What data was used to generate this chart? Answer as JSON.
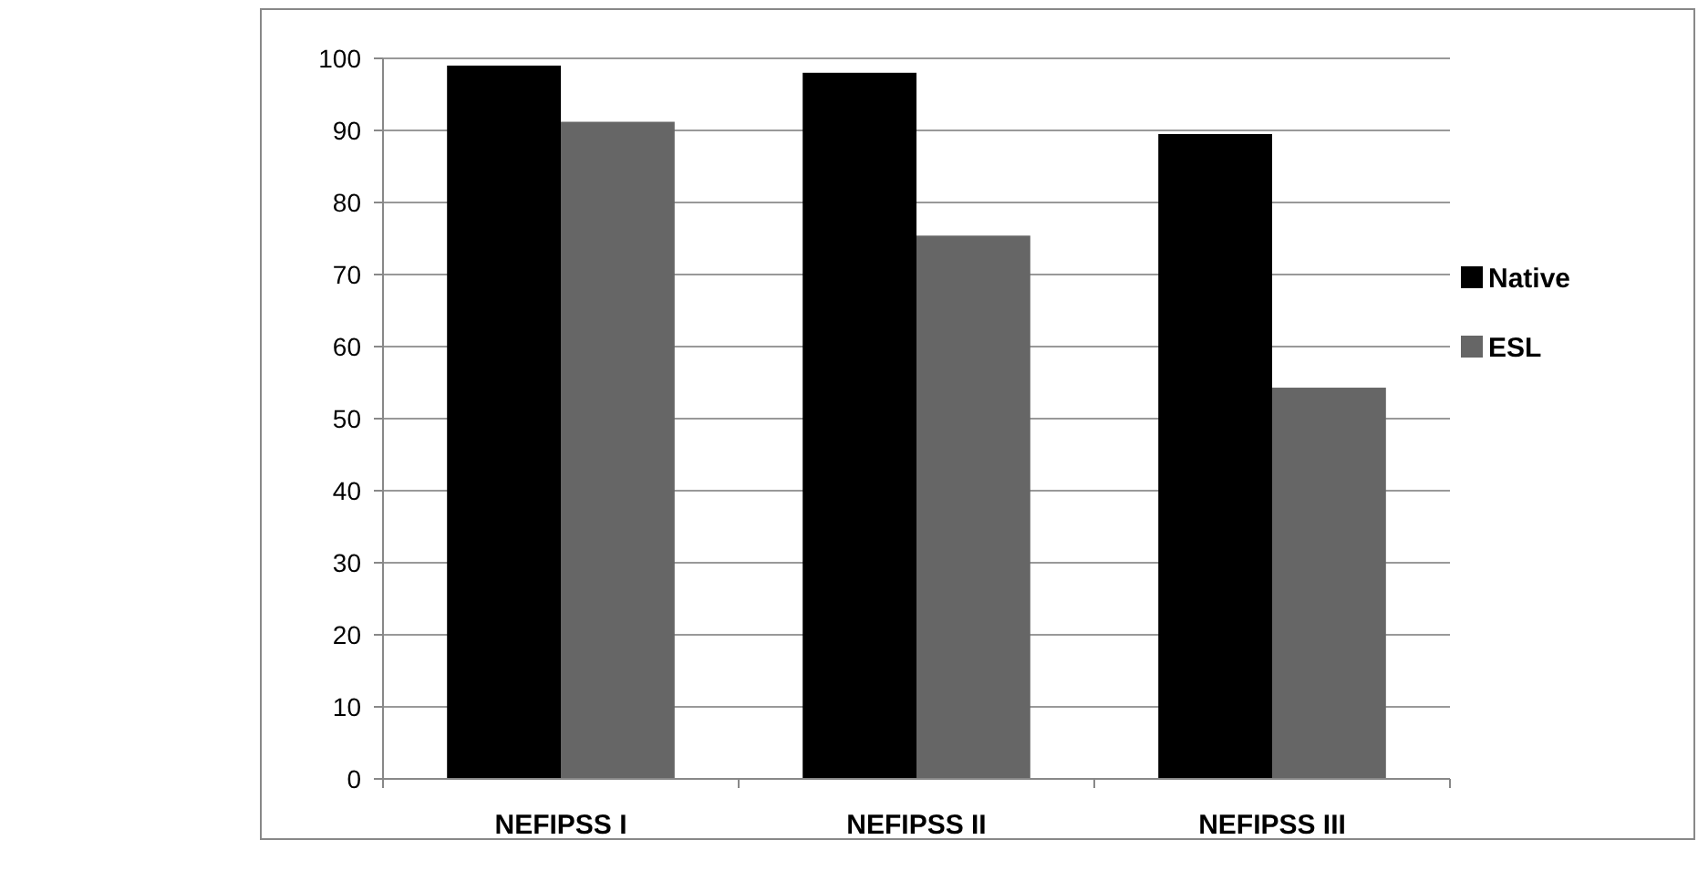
{
  "chart_data": {
    "type": "bar",
    "categories": [
      "NEFIPSS I",
      "NEFIPSS II",
      "NEFIPSS III"
    ],
    "series": [
      {
        "name": "Native",
        "color": "#000000",
        "values": [
          99,
          98,
          89.5
        ]
      },
      {
        "name": "ESL",
        "color": "#666666",
        "values": [
          91.2,
          75.4,
          54.3
        ]
      }
    ],
    "ylim": [
      0,
      100
    ],
    "yticks": [
      0,
      10,
      20,
      30,
      40,
      50,
      60,
      70,
      80,
      90,
      100
    ],
    "grid": "y",
    "legend": "right"
  }
}
